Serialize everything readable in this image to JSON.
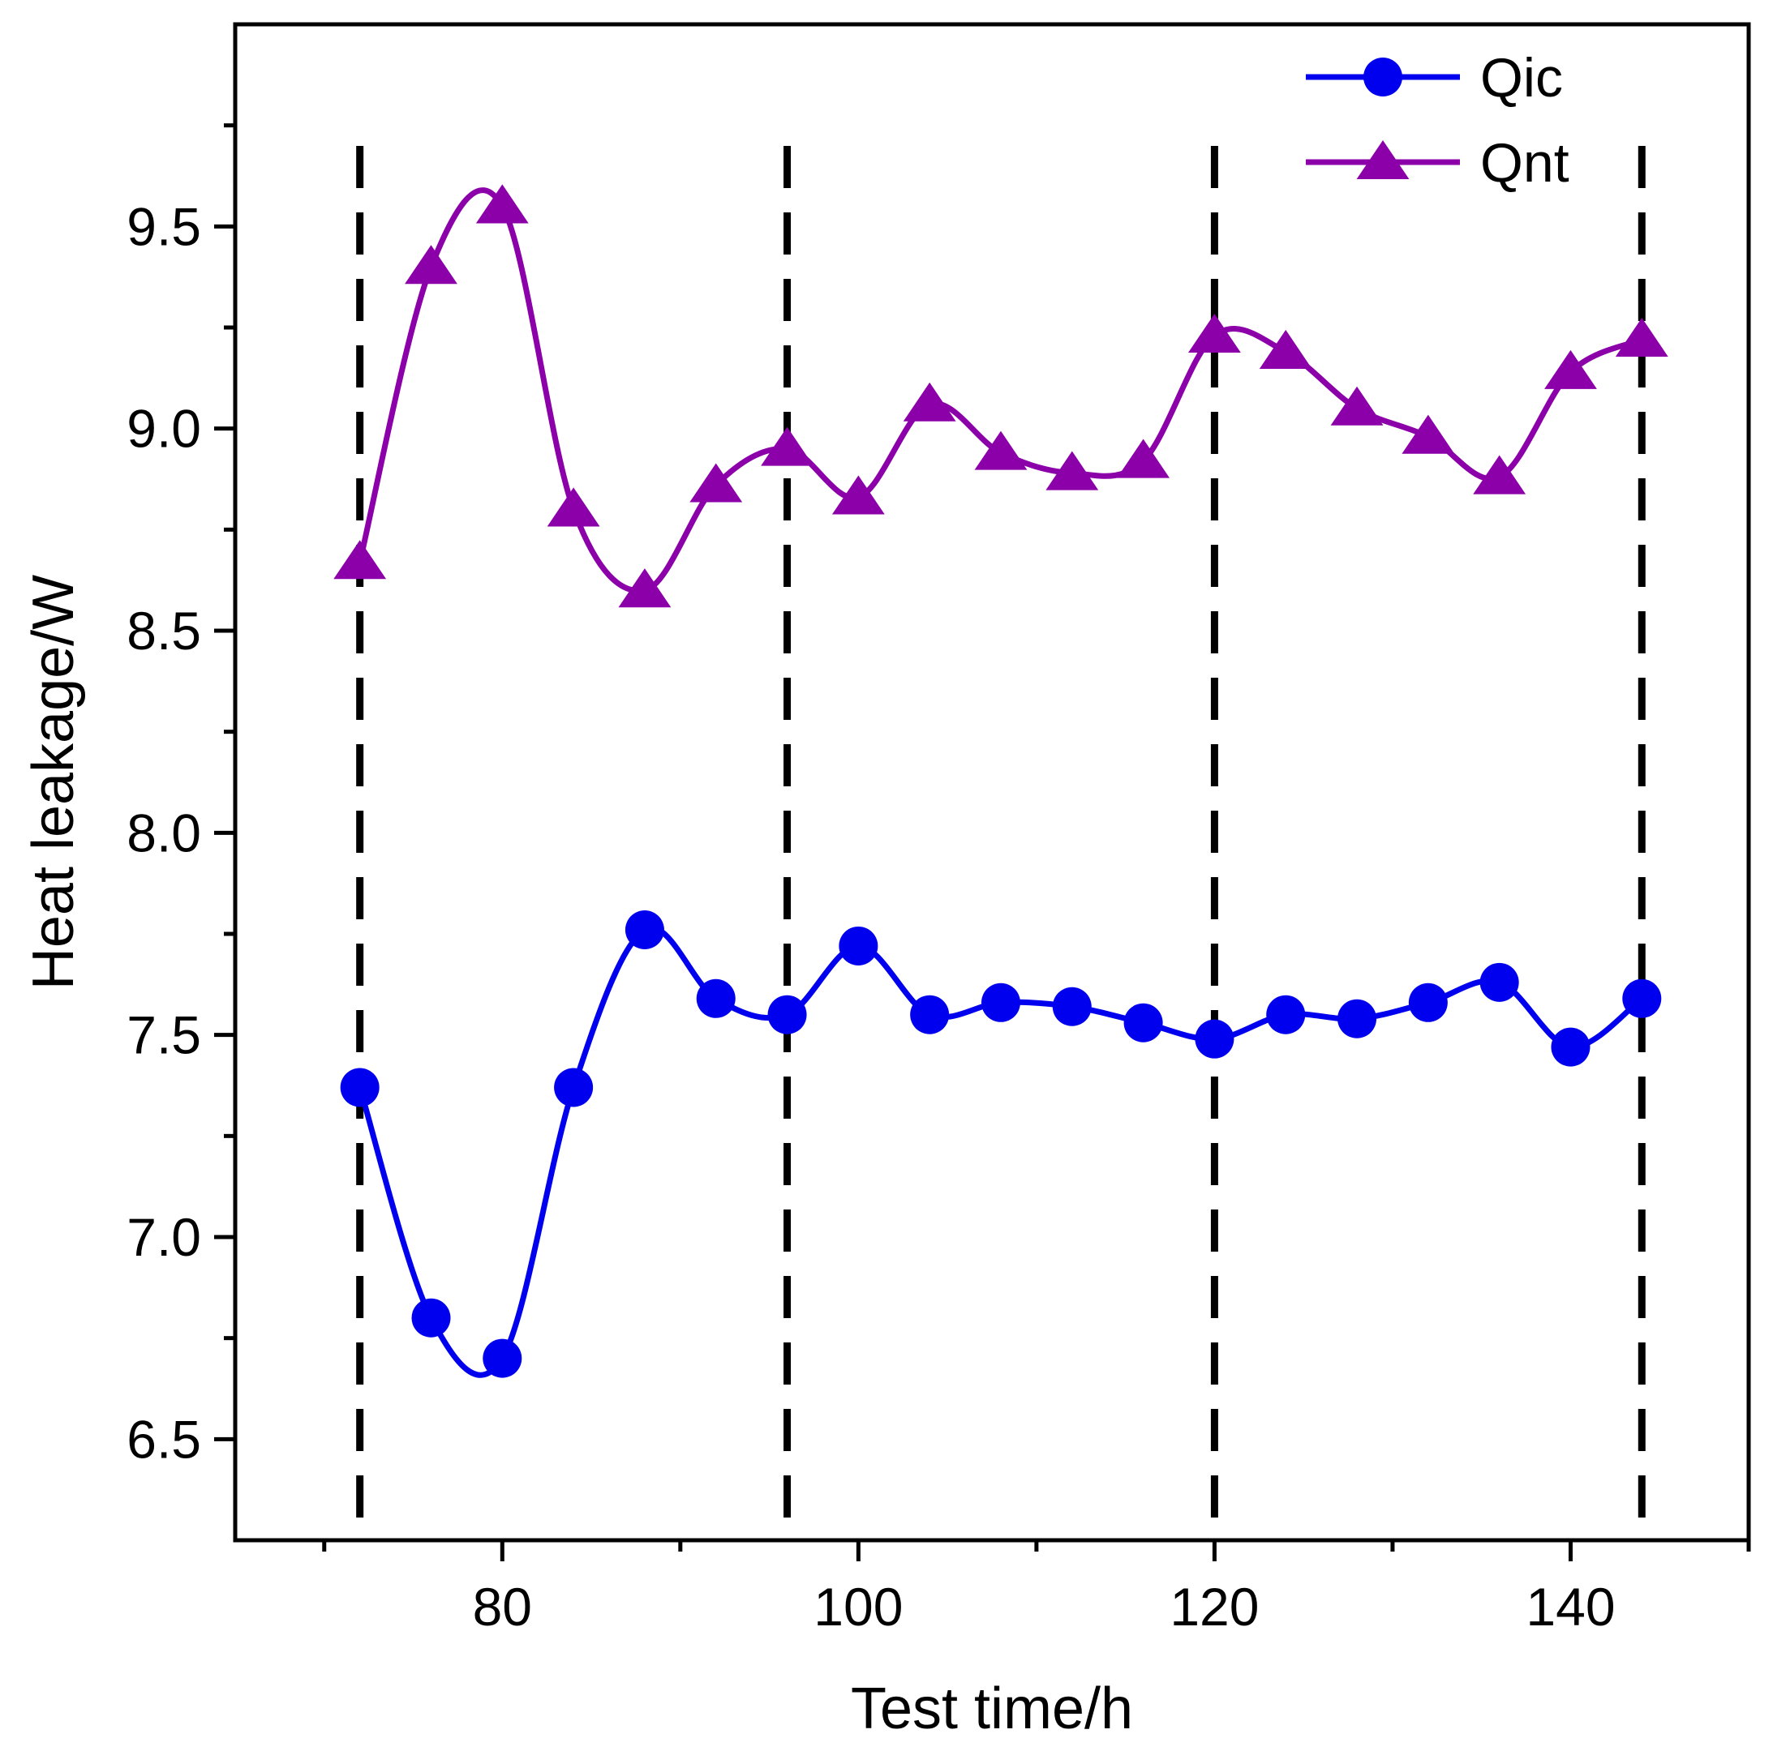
{
  "chart_data": {
    "type": "line",
    "xlabel": "Test time/h",
    "ylabel": "Heat leakage/W",
    "xlim": [
      65,
      150
    ],
    "ylim": [
      6.25,
      10.0
    ],
    "x_ticks": [
      80,
      100,
      120,
      140
    ],
    "x_minor_ticks": [
      70,
      90,
      110,
      130,
      150
    ],
    "y_ticks": [
      6.5,
      7.0,
      7.5,
      8.0,
      8.5,
      9.0,
      9.5
    ],
    "y_minor_ticks": [
      6.75,
      7.25,
      7.75,
      8.25,
      8.75,
      9.25,
      9.75
    ],
    "x_tick_labels": [
      "80",
      "100",
      "120",
      "140"
    ],
    "y_tick_labels": [
      "6.5",
      "7.0",
      "7.5",
      "8.0",
      "8.5",
      "9.0",
      "9.5"
    ],
    "vertical_dashed_lines": [
      72,
      96,
      120,
      144
    ],
    "grid": false,
    "legend_position": "top-right",
    "x": [
      72,
      76,
      80,
      84,
      88,
      92,
      96,
      100,
      104,
      108,
      112,
      116,
      120,
      124,
      128,
      132,
      136,
      140,
      144
    ],
    "series": [
      {
        "name": "Qic",
        "marker": "circle",
        "color": "#0000ee",
        "values": [
          7.37,
          6.8,
          6.7,
          7.37,
          7.76,
          7.59,
          7.55,
          7.72,
          7.55,
          7.58,
          7.57,
          7.53,
          7.49,
          7.55,
          7.54,
          7.58,
          7.63,
          7.47,
          7.59
        ]
      },
      {
        "name": "Qnt",
        "marker": "triangle",
        "color": "#8b00a8",
        "values": [
          8.67,
          9.4,
          9.55,
          8.8,
          8.6,
          8.86,
          8.95,
          8.83,
          9.06,
          8.94,
          8.89,
          8.92,
          9.23,
          9.19,
          9.05,
          8.98,
          8.88,
          9.14,
          9.22
        ]
      }
    ]
  }
}
